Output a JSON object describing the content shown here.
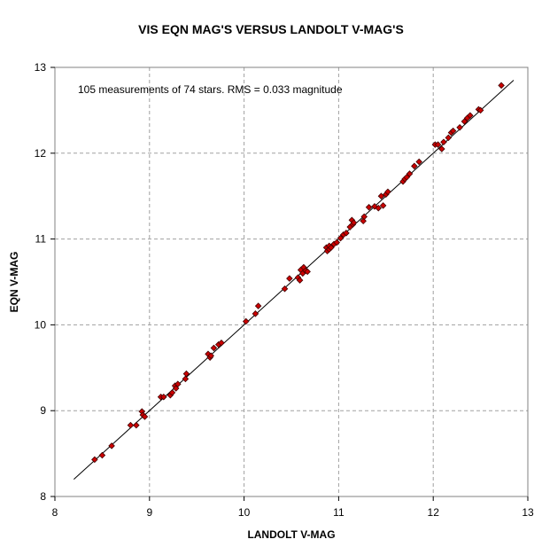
{
  "chart_data": {
    "type": "scatter",
    "title": "VIS EQN MAG'S VERSUS LANDOLT V-MAG'S",
    "xlabel": "LANDOLT V-MAG",
    "ylabel": "EQN V-MAG",
    "xlim": [
      8,
      13
    ],
    "ylim": [
      8,
      13
    ],
    "xticks": [
      "8",
      "9",
      "10",
      "11",
      "12",
      "13"
    ],
    "yticks": [
      "8",
      "9",
      "10",
      "11",
      "12",
      "13"
    ],
    "grid": true,
    "annotation": "105 measurements of 74 stars.  RMS = 0.033 magnitude",
    "marker_color": "#cc0000",
    "marker_edge_color": "#400000",
    "line_color": "#000000",
    "reference_line": {
      "x": [
        8.2,
        12.85
      ],
      "y": [
        8.2,
        12.85
      ]
    },
    "points": [
      [
        8.42,
        8.43
      ],
      [
        8.5,
        8.48
      ],
      [
        8.6,
        8.59
      ],
      [
        8.8,
        8.83
      ],
      [
        8.86,
        8.83
      ],
      [
        8.92,
        8.99
      ],
      [
        8.93,
        8.95
      ],
      [
        8.95,
        8.93
      ],
      [
        9.12,
        9.16
      ],
      [
        9.15,
        9.16
      ],
      [
        9.22,
        9.18
      ],
      [
        9.24,
        9.21
      ],
      [
        9.27,
        9.29
      ],
      [
        9.28,
        9.26
      ],
      [
        9.3,
        9.31
      ],
      [
        9.38,
        9.37
      ],
      [
        9.39,
        9.43
      ],
      [
        9.62,
        9.66
      ],
      [
        9.64,
        9.62
      ],
      [
        9.65,
        9.64
      ],
      [
        9.68,
        9.73
      ],
      [
        9.73,
        9.77
      ],
      [
        9.76,
        9.79
      ],
      [
        10.02,
        10.04
      ],
      [
        10.12,
        10.13
      ],
      [
        10.15,
        10.22
      ],
      [
        10.43,
        10.42
      ],
      [
        10.48,
        10.54
      ],
      [
        10.57,
        10.55
      ],
      [
        10.59,
        10.52
      ],
      [
        10.6,
        10.64
      ],
      [
        10.62,
        10.6
      ],
      [
        10.63,
        10.67
      ],
      [
        10.65,
        10.63
      ],
      [
        10.67,
        10.62
      ],
      [
        10.87,
        10.9
      ],
      [
        10.88,
        10.86
      ],
      [
        10.9,
        10.88
      ],
      [
        10.9,
        10.92
      ],
      [
        10.92,
        10.9
      ],
      [
        10.95,
        10.94
      ],
      [
        10.98,
        10.96
      ],
      [
        11.02,
        11.01
      ],
      [
        11.05,
        11.05
      ],
      [
        11.08,
        11.07
      ],
      [
        11.12,
        11.14
      ],
      [
        11.14,
        11.22
      ],
      [
        11.15,
        11.17
      ],
      [
        11.16,
        11.19
      ],
      [
        11.26,
        11.21
      ],
      [
        11.27,
        11.26
      ],
      [
        11.32,
        11.37
      ],
      [
        11.38,
        11.38
      ],
      [
        11.42,
        11.36
      ],
      [
        11.45,
        11.5
      ],
      [
        11.47,
        11.39
      ],
      [
        11.5,
        11.52
      ],
      [
        11.52,
        11.55
      ],
      [
        11.68,
        11.67
      ],
      [
        11.7,
        11.7
      ],
      [
        11.72,
        11.72
      ],
      [
        11.75,
        11.76
      ],
      [
        11.8,
        11.85
      ],
      [
        11.85,
        11.9
      ],
      [
        12.02,
        12.1
      ],
      [
        12.05,
        12.1
      ],
      [
        12.09,
        12.05
      ],
      [
        12.11,
        12.13
      ],
      [
        12.16,
        12.18
      ],
      [
        12.19,
        12.24
      ],
      [
        12.21,
        12.26
      ],
      [
        12.28,
        12.3
      ],
      [
        12.33,
        12.37
      ],
      [
        12.36,
        12.41
      ],
      [
        12.39,
        12.44
      ],
      [
        12.48,
        12.51
      ],
      [
        12.5,
        12.5
      ],
      [
        12.72,
        12.79
      ]
    ]
  }
}
